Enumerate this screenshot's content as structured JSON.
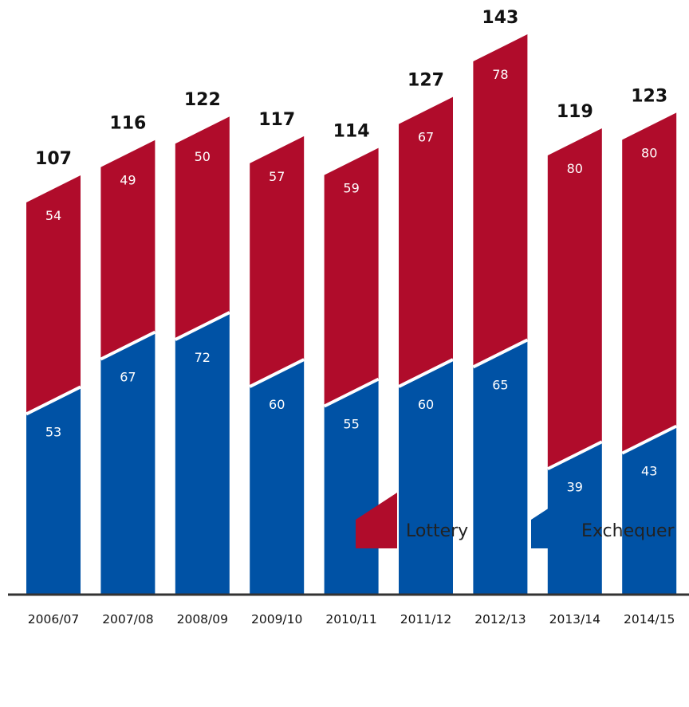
{
  "chart_data": {
    "type": "bar",
    "stacked": true,
    "title": "",
    "xlabel": "",
    "ylabel": "",
    "categories": [
      "2006/07",
      "2007/08",
      "2008/09",
      "2009/10",
      "2010/11",
      "2011/12",
      "2012/13",
      "2013/14",
      "2014/15"
    ],
    "series": [
      {
        "name": "Exchequer",
        "values": [
          53,
          67,
          72,
          60,
          55,
          60,
          65,
          39,
          43
        ],
        "color": "#0052a5"
      },
      {
        "name": "Lottery",
        "values": [
          54,
          49,
          50,
          57,
          59,
          67,
          78,
          80,
          80
        ],
        "color": "#b00c2b"
      }
    ],
    "totals": [
      107,
      116,
      122,
      117,
      114,
      127,
      143,
      119,
      123
    ],
    "ylim": [
      0,
      143
    ],
    "grid": false,
    "legend_position": "bottom-right",
    "divider_color": "#ffffff",
    "baseline_color": "#333333",
    "text_color": "#111111"
  },
  "legend": {
    "items": [
      {
        "label": "Lottery",
        "color": "#b00c2b"
      },
      {
        "label": "Exchequer",
        "color": "#0052a5"
      }
    ]
  }
}
